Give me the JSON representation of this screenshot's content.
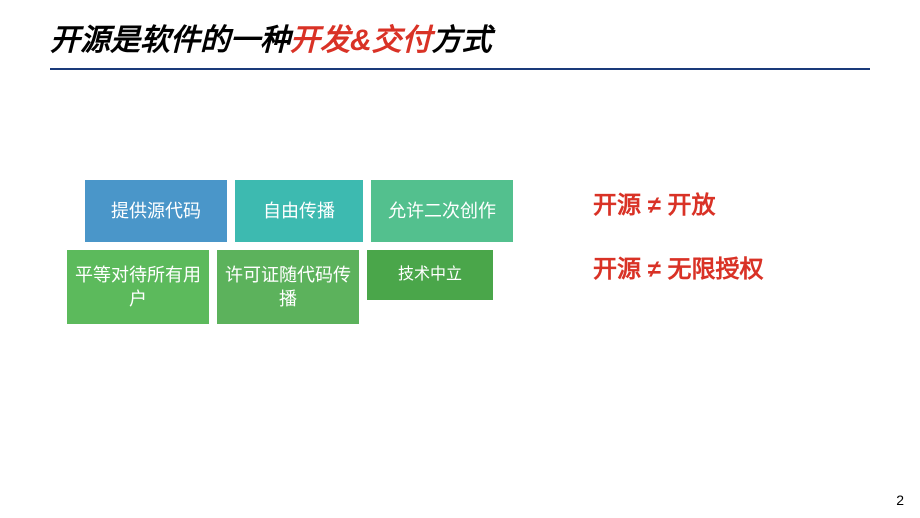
{
  "title": {
    "part1": "开源是软件的一种",
    "highlight": "开发&交付",
    "part2": "方式",
    "underline_color": "#1a3a7a",
    "highlight_color": "#d93226",
    "fontsize": 30
  },
  "boxes": {
    "row1": [
      {
        "label": "提供源代码",
        "bg": "#4a96c9"
      },
      {
        "label": "自由传播",
        "bg": "#3dbab0"
      },
      {
        "label": "允许二次创作",
        "bg": "#53c08e"
      }
    ],
    "row2": [
      {
        "label": "平等对待所有用户",
        "bg": "#5cba5c"
      },
      {
        "label": "许可证随代码传播",
        "bg": "#5cb25c"
      },
      {
        "label": "技术中立",
        "bg": "#4aa64a"
      }
    ],
    "text_color": "#ffffff",
    "fontsize": 18
  },
  "notes": {
    "items": [
      "开源 ≠ 开放",
      "开源 ≠ 无限授权"
    ],
    "color": "#d93226",
    "fontsize": 24
  },
  "page_number": "2",
  "layout": {
    "slide_width": 920,
    "slide_height": 518,
    "background": "#ffffff"
  }
}
